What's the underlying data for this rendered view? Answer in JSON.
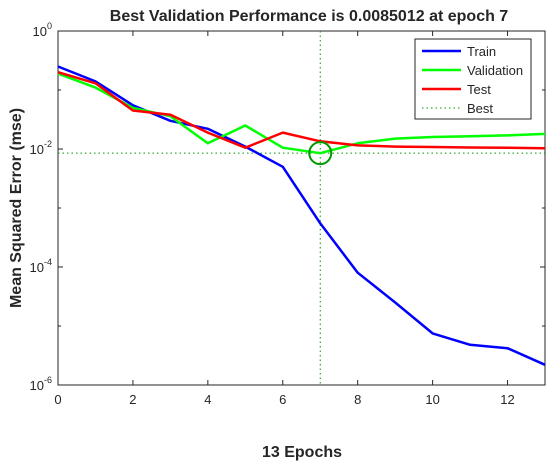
{
  "chart_data": {
    "type": "line",
    "title": "Best Validation Performance is 0.0085012 at epoch 7",
    "xlabel": "13 Epochs",
    "ylabel": "Mean Squared Error  (mse)",
    "xlim": [
      0,
      13
    ],
    "ylim": [
      1e-06,
      1
    ],
    "yscale": "log",
    "xticks": [
      0,
      2,
      4,
      6,
      8,
      10,
      12
    ],
    "yticks": [
      {
        "base": "10",
        "exp": "0",
        "value": 1
      },
      {
        "base": "10",
        "exp": "-2",
        "value": 0.01
      },
      {
        "base": "10",
        "exp": "-4",
        "value": 0.0001
      },
      {
        "base": "10",
        "exp": "-6",
        "value": 1e-06
      }
    ],
    "x": [
      0,
      1,
      2,
      3,
      4,
      5,
      6,
      7,
      8,
      9,
      10,
      11,
      12,
      13
    ],
    "series": [
      {
        "name": "Train",
        "color": "#0000ff",
        "style": "solid",
        "values": [
          0.25,
          0.14,
          0.055,
          0.03,
          0.022,
          0.011,
          0.005,
          0.00055,
          8e-05,
          2.5e-05,
          7.5e-06,
          4.8e-06,
          4.2e-06,
          2.2e-06
        ]
      },
      {
        "name": "Validation",
        "color": "#00ff00",
        "style": "solid",
        "values": [
          0.19,
          0.11,
          0.05,
          0.036,
          0.0125,
          0.025,
          0.0105,
          0.0085012,
          0.0125,
          0.015,
          0.016,
          0.0165,
          0.017,
          0.018
        ]
      },
      {
        "name": "Test",
        "color": "#ff0000",
        "style": "solid",
        "values": [
          0.2,
          0.13,
          0.045,
          0.038,
          0.019,
          0.0105,
          0.019,
          0.0135,
          0.0115,
          0.011,
          0.0108,
          0.0106,
          0.0105,
          0.0103
        ]
      }
    ],
    "best": {
      "name": "Best",
      "color": "#009900",
      "style": "dotted",
      "epoch": 7,
      "value": 0.0085012
    },
    "legend_position": "top-right",
    "grid": false
  }
}
